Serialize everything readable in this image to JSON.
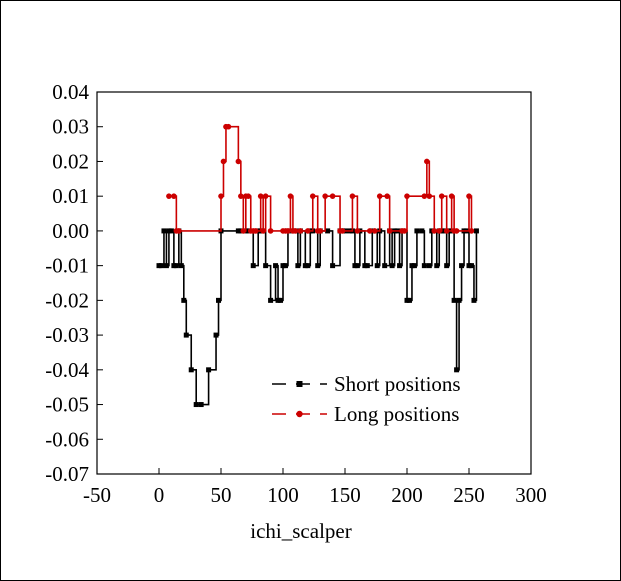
{
  "chart_data": {
    "type": "line",
    "title": "",
    "xlabel": "ichi_scalper",
    "ylabel": "",
    "xlim": [
      -50,
      300
    ],
    "ylim": [
      -0.07,
      0.04
    ],
    "xticks": [
      -50,
      0,
      50,
      100,
      150,
      200,
      250,
      300
    ],
    "yticks": [
      0.04,
      0.03,
      0.02,
      0.01,
      0.0,
      -0.01,
      -0.02,
      -0.03,
      -0.04,
      -0.05,
      -0.06,
      -0.07
    ],
    "xtick_labels": [
      "-50",
      "0",
      "50",
      "100",
      "150",
      "200",
      "250",
      "300"
    ],
    "ytick_labels": [
      "0.04",
      "0.03",
      "0.02",
      "0.01",
      "0.00",
      "-0.01",
      "-0.02",
      "-0.03",
      "-0.04",
      "-0.05",
      "-0.06",
      "-0.07"
    ],
    "step": true,
    "grid": false,
    "legend": "bottom-center",
    "series": [
      {
        "name": "Short positions",
        "color": "#000000",
        "marker": "square",
        "x": [
          0,
          2,
          4,
          6,
          8,
          10,
          12,
          14,
          16,
          18,
          20,
          22,
          26,
          30,
          34,
          40,
          46,
          48,
          50,
          64,
          66,
          70,
          72,
          76,
          80,
          82,
          84,
          86,
          90,
          94,
          96,
          98,
          100,
          102,
          104,
          108,
          110,
          112,
          114,
          118,
          120,
          122,
          124,
          128,
          130,
          136,
          140,
          146,
          148,
          150,
          154,
          156,
          158,
          160,
          162,
          166,
          168,
          172,
          176,
          178,
          182,
          186,
          188,
          190,
          192,
          194,
          196,
          200,
          202,
          204,
          206,
          208,
          212,
          214,
          218,
          220,
          224,
          226,
          228,
          230,
          232,
          234,
          236,
          238,
          240,
          242,
          244,
          246,
          248,
          250,
          252,
          254,
          256
        ],
        "y": [
          -0.01,
          -0.01,
          0.0,
          -0.01,
          0.0,
          0.0,
          -0.01,
          -0.01,
          0.0,
          -0.01,
          -0.02,
          -0.03,
          -0.04,
          -0.05,
          -0.05,
          -0.04,
          -0.03,
          -0.02,
          0.0,
          0.0,
          0.0,
          0.0,
          0.0,
          -0.01,
          0.0,
          0.0,
          0.0,
          -0.01,
          -0.02,
          -0.01,
          -0.02,
          -0.02,
          -0.01,
          -0.01,
          0.0,
          0.0,
          0.0,
          -0.01,
          0.0,
          -0.01,
          -0.01,
          0.0,
          0.0,
          -0.01,
          0.0,
          0.0,
          -0.01,
          0.0,
          0.0,
          0.0,
          0.0,
          0.0,
          -0.01,
          -0.01,
          0.0,
          -0.01,
          -0.01,
          0.0,
          -0.01,
          0.0,
          -0.01,
          0.0,
          -0.01,
          0.0,
          0.0,
          -0.01,
          0.0,
          -0.02,
          -0.02,
          -0.01,
          -0.01,
          0.0,
          0.0,
          -0.01,
          -0.01,
          0.0,
          -0.01,
          0.0,
          0.0,
          0.0,
          -0.01,
          0.0,
          0.0,
          -0.02,
          -0.04,
          -0.02,
          -0.01,
          0.0,
          0.0,
          -0.01,
          -0.01,
          -0.02,
          0.0
        ]
      },
      {
        "name": "Long positions",
        "color": "#cc0000",
        "marker": "circle",
        "x": [
          8,
          12,
          14,
          16,
          50,
          52,
          54,
          56,
          64,
          66,
          68,
          70,
          72,
          74,
          76,
          78,
          82,
          84,
          86,
          90,
          100,
          102,
          104,
          106,
          108,
          110,
          114,
          120,
          124,
          128,
          130,
          134,
          140,
          146,
          148,
          156,
          160,
          170,
          174,
          178,
          184,
          186,
          196,
          198,
          200,
          214,
          216,
          218,
          222,
          226,
          228,
          232,
          236,
          238,
          240,
          250,
          252
        ],
        "y": [
          0.01,
          0.01,
          0.0,
          0.0,
          0.01,
          0.02,
          0.03,
          0.03,
          0.02,
          0.01,
          0.0,
          0.01,
          0.01,
          0.0,
          0.0,
          0.0,
          0.01,
          0.0,
          0.01,
          0.0,
          0.0,
          0.0,
          0.0,
          0.01,
          0.0,
          0.0,
          0.0,
          0.0,
          0.01,
          0.0,
          0.0,
          0.01,
          0.01,
          0.0,
          0.0,
          0.01,
          0.0,
          0.0,
          0.0,
          0.01,
          0.01,
          0.0,
          0.0,
          0.0,
          0.01,
          0.01,
          0.02,
          0.01,
          0.0,
          0.0,
          0.01,
          0.0,
          0.01,
          0.0,
          0.0,
          0.01,
          0.0
        ]
      }
    ]
  }
}
